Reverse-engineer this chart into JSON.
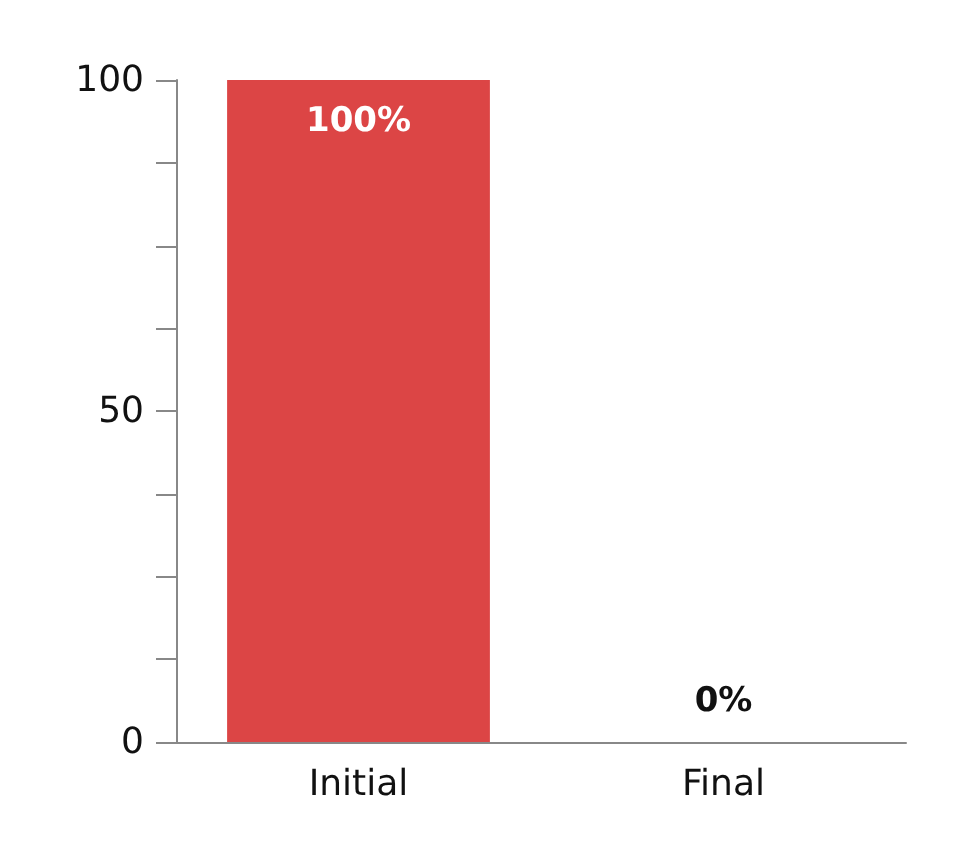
{
  "chart_data": {
    "type": "bar",
    "categories": [
      "Initial",
      "Final"
    ],
    "values": [
      100,
      0
    ],
    "value_labels": [
      "100%",
      "0%"
    ],
    "color": "#dc4545",
    "ylim": [
      0,
      100
    ],
    "yticks": [
      0,
      {
        "value": 12.5,
        "label": null
      },
      {
        "value": 25,
        "label": null
      },
      {
        "value": 37.5,
        "label": null
      },
      50,
      {
        "value": 62.5,
        "label": null
      },
      {
        "value": 75,
        "label": null
      },
      {
        "value": 87.5,
        "label": null
      },
      100
    ]
  }
}
